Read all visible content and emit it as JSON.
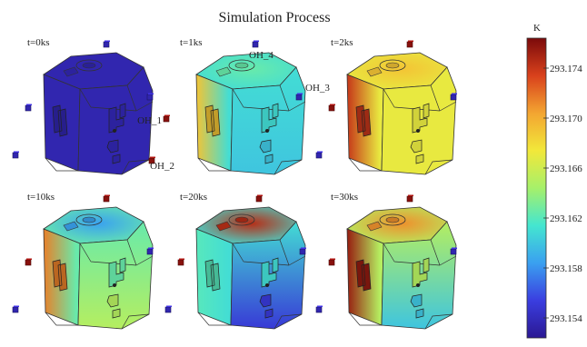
{
  "chart_data": {
    "type": "heatmap",
    "title": "Simulation Process",
    "colorbar": {
      "unit": "K",
      "ticks": [
        "293.174",
        "293.170",
        "293.166",
        "293.162",
        "293.158",
        "293.154"
      ],
      "tick_values": [
        293.174,
        293.17,
        293.166,
        293.162,
        293.158,
        293.154
      ],
      "range": [
        293.1524,
        293.1764
      ],
      "colormap": [
        "#2b1893",
        "#3a3ee0",
        "#3aa0f0",
        "#44e6d0",
        "#a6f06a",
        "#f2e83a",
        "#f3a531",
        "#d9411c",
        "#7b0a0b"
      ]
    },
    "probe_labels": [
      "OH_1",
      "OH_2",
      "OH_3",
      "OH_4"
    ],
    "frames": [
      {
        "label": "t=0ks",
        "fill": 293.1535,
        "hot_top": 293.1535,
        "hot_left": 293.1535,
        "cool_bottom": 293.1535,
        "probe_values": [
          293.1535,
          293.1535,
          293.1535,
          293.1535
        ]
      },
      {
        "label": "t=1ks",
        "fill": 293.161,
        "hot_top": 293.1625,
        "hot_left": 293.169,
        "cool_bottom": 293.16,
        "probe_values": [
          293.176,
          293.176,
          293.1535,
          293.1535
        ]
      },
      {
        "label": "t=2ks",
        "fill": 293.167,
        "hot_top": 293.169,
        "hot_left": 293.174,
        "cool_bottom": 293.167,
        "probe_values": [
          293.176,
          293.176,
          293.1535,
          293.1535
        ]
      },
      {
        "label": "t=10ks",
        "fill": 293.1625,
        "hot_top": 293.1585,
        "hot_left": 293.1715,
        "cool_bottom": 293.165,
        "probe_values": [
          293.176,
          293.176,
          293.1535,
          293.1535
        ]
      },
      {
        "label": "t=20ks",
        "fill": 293.161,
        "hot_top": 293.1745,
        "hot_left": 293.162,
        "cool_bottom": 293.155,
        "probe_values": [
          293.176,
          293.176,
          293.1535,
          293.1535
        ]
      },
      {
        "label": "t=30ks",
        "fill": 293.165,
        "hot_top": 293.171,
        "hot_left": 293.1755,
        "cool_bottom": 293.16,
        "probe_values": [
          293.176,
          293.176,
          293.1535,
          293.1535
        ]
      }
    ]
  }
}
